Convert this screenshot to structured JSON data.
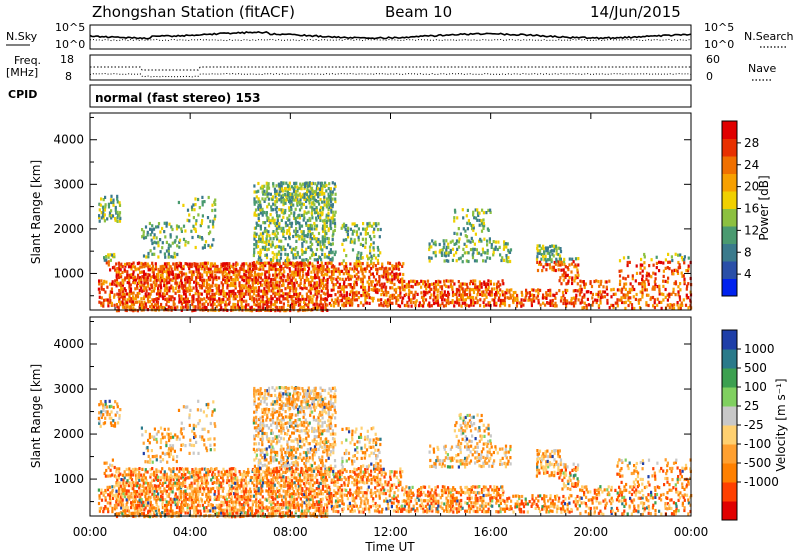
{
  "header": {
    "title": "Zhongshan Station (fitACF)",
    "beam": "Beam 10",
    "date": "14/Jun/2015"
  },
  "summary": {
    "nsky_label": "N.Sky",
    "nsearch_label": "N.Search",
    "freq_label_top": "Freq.",
    "freq_label_bottom": "[MHz]",
    "nave_label": "Nave",
    "cpid_label": "CPID",
    "noise_ticks": [
      "10^5",
      "10^0"
    ],
    "freq_ticks": [
      "18",
      "8"
    ],
    "nave_ticks": [
      "60",
      "0"
    ],
    "cpid_text": "normal (fast stereo) 153"
  },
  "colors": {
    "power": [
      "#0022ee",
      "#2a4fa8",
      "#3a7a8c",
      "#4a9a70",
      "#8cc040",
      "#f0d000",
      "#f7a000",
      "#f07000",
      "#e83000",
      "#e00000"
    ],
    "velocity": [
      "#e00000",
      "#ff4000",
      "#ff8000",
      "#ffa030",
      "#ffd070",
      "#c8c8c8",
      "#80d060",
      "#3ca050",
      "#2a7a8a",
      "#1f3fa8"
    ]
  },
  "chart_data": [
    {
      "type": "heatmap",
      "panel": "power",
      "ylabel": "Slant Range [km]",
      "xlabel": "",
      "x_ticks": [
        "00:00",
        "04:00",
        "08:00",
        "12:00",
        "16:00",
        "20:00",
        "00:00"
      ],
      "xlim_hours": [
        0,
        24
      ],
      "y_ticks": [
        1000,
        2000,
        3000,
        4000
      ],
      "ylim_km": [
        180,
        4600
      ],
      "colorbar": {
        "label": "Power [dB]",
        "range": [
          0,
          32
        ],
        "ticks": [
          4,
          8,
          12,
          16,
          20,
          24,
          28
        ]
      }
    },
    {
      "type": "heatmap",
      "panel": "velocity",
      "ylabel": "Slant Range [km]",
      "xlabel": "Time UT",
      "x_ticks": [
        "00:00",
        "04:00",
        "08:00",
        "12:00",
        "16:00",
        "20:00",
        "00:00"
      ],
      "xlim_hours": [
        0,
        24
      ],
      "y_ticks": [
        1000,
        2000,
        3000,
        4000
      ],
      "ylim_km": [
        180,
        4600
      ],
      "colorbar": {
        "label": "Velocity [m s⁻¹]",
        "levels": [
          "1000",
          "500",
          "100",
          "25",
          "-25",
          "-100",
          "-500",
          "-1000"
        ]
      }
    }
  ]
}
